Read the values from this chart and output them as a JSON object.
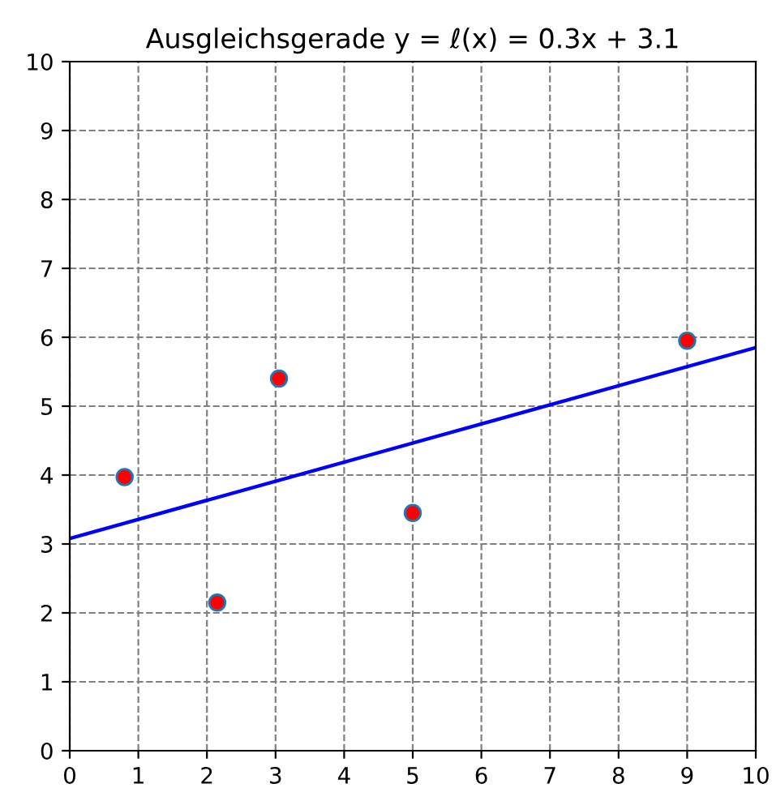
{
  "chart_data": {
    "type": "scatter",
    "title": "Ausgleichsgerade y = ℓ(x) = 0.3x + 3.1",
    "series": [
      {
        "marker": "circle",
        "color": "#ff0000",
        "x": [
          0.8,
          2.15,
          3.05,
          5.0,
          9.0
        ],
        "values": [
          3.97,
          2.15,
          5.4,
          3.45,
          5.95
        ]
      },
      {
        "type": "line",
        "marker": "none",
        "line_style": "solid",
        "color": "#0000ff",
        "x": [
          0,
          10
        ],
        "values": [
          3.08,
          5.85
        ]
      }
    ],
    "xlim": [
      0,
      10
    ],
    "ylim": [
      0,
      10
    ],
    "xticks": [
      0,
      1,
      2,
      3,
      4,
      5,
      6,
      7,
      8,
      9,
      10
    ],
    "yticks": [
      0,
      1,
      2,
      3,
      4,
      5,
      6,
      7,
      8,
      9,
      10
    ],
    "grid": true
  }
}
